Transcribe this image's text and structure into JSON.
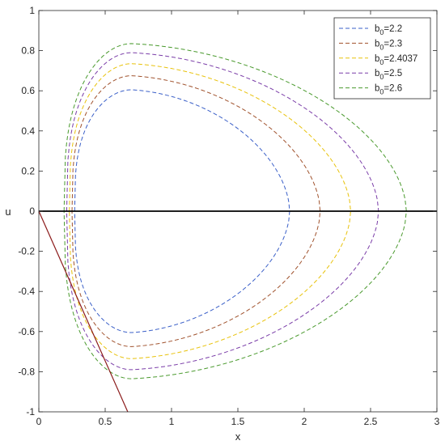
{
  "chart_data": {
    "type": "line",
    "xlabel": "x",
    "ylabel": "u",
    "xlim": [
      0,
      3
    ],
    "ylim": [
      -1,
      1
    ],
    "x_ticks": [
      "0",
      "0.5",
      "1",
      "1.5",
      "2",
      "2.5",
      "3"
    ],
    "y_ticks": [
      "-1",
      "-0.8",
      "-0.6",
      "-0.4",
      "-0.2",
      "0",
      "0.2",
      "0.4",
      "0.6",
      "0.8",
      "1"
    ],
    "x_tick_values": [
      0,
      0.5,
      1,
      1.5,
      2,
      2.5,
      3
    ],
    "y_tick_values": [
      -1,
      -0.8,
      -0.6,
      -0.4,
      -0.2,
      0,
      0.2,
      0.4,
      0.6,
      0.8,
      1
    ],
    "grid": false,
    "legend_position": "top-right",
    "series": [
      {
        "name": "b0=2.2",
        "legend_main": "b",
        "legend_sub": "0",
        "legend_rest": "=2.2",
        "color": "#3a5fc8",
        "style": "dashed",
        "x_left": 0.27,
        "x_right": 1.89,
        "x_peak": 0.7,
        "u_peak": 0.605
      },
      {
        "name": "b0=2.3",
        "legend_main": "b",
        "legend_sub": "0",
        "legend_rest": "=2.3",
        "color": "#a0522d",
        "style": "dashed",
        "x_left": 0.25,
        "x_right": 2.12,
        "x_peak": 0.7,
        "u_peak": 0.675
      },
      {
        "name": "b0=2.4037",
        "legend_main": "b",
        "legend_sub": "0",
        "legend_rest": "=2.4037",
        "color": "#e8c20a",
        "style": "dashed",
        "x_left": 0.23,
        "x_right": 2.35,
        "x_peak": 0.7,
        "u_peak": 0.735
      },
      {
        "name": "b0=2.5",
        "legend_main": "b",
        "legend_sub": "0",
        "legend_rest": "=2.5",
        "color": "#7a3da8",
        "style": "dashed",
        "x_left": 0.21,
        "x_right": 2.56,
        "x_peak": 0.7,
        "u_peak": 0.79
      },
      {
        "name": "b0=2.6",
        "legend_main": "b",
        "legend_sub": "0",
        "legend_rest": "=2.6",
        "color": "#4a9a2e",
        "style": "dashed",
        "x_left": 0.19,
        "x_right": 2.77,
        "x_peak": 0.7,
        "u_peak": 0.835
      }
    ],
    "reference_lines": [
      {
        "name": "u=0",
        "color": "#000000",
        "points": [
          [
            0,
            0
          ],
          [
            3,
            0
          ]
        ]
      },
      {
        "name": "line",
        "color": "#8b1a1a",
        "points": [
          [
            0,
            0
          ],
          [
            0.67,
            -1
          ]
        ]
      }
    ]
  }
}
